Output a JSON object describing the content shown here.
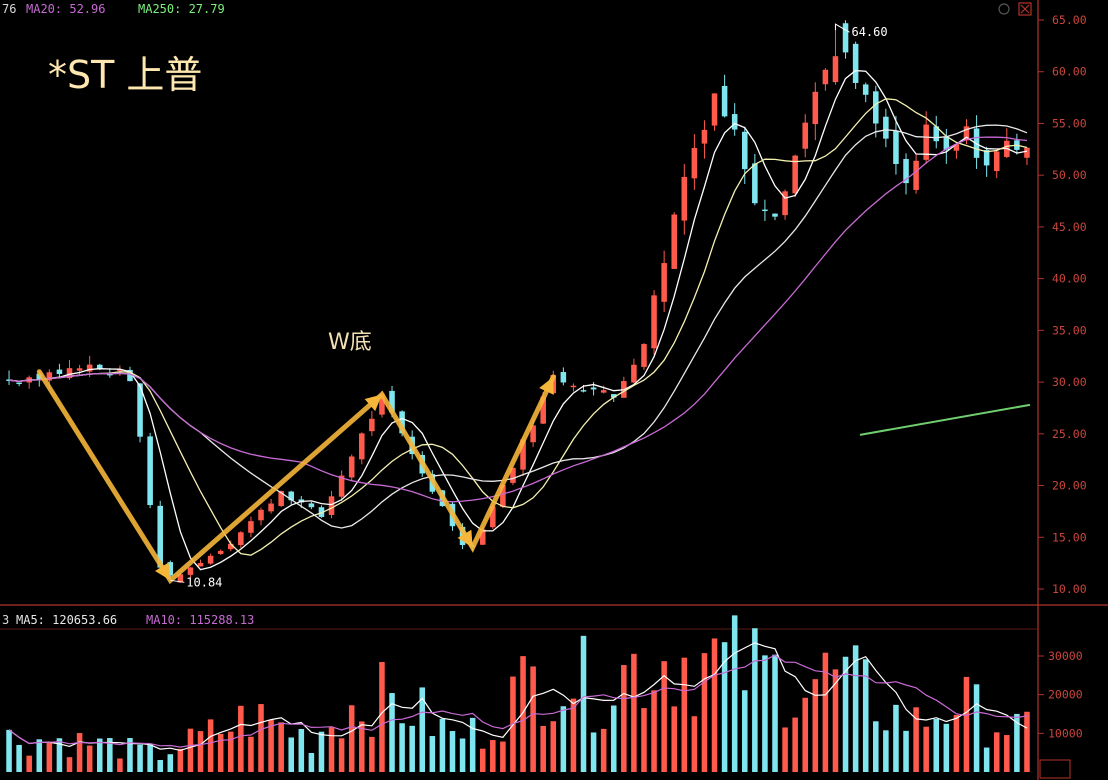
{
  "colors": {
    "background": "#000000",
    "axis_border": "#b3332c",
    "axis_text": "#c8463c",
    "up": "#ff5a4c",
    "down": "#7fe6ef",
    "ma_fast": "#ffffff",
    "ma_mid": "#f4f1b0",
    "ma_slow": "#c86ad4",
    "arrow": "#f5b63a",
    "trend": "#6fcf6f",
    "title_color": "#ffe7b0"
  },
  "header_top": {
    "partial": "76",
    "ma20_label": "MA20: 52.96",
    "ma250_label": "MA250: 27.79"
  },
  "header_bottom": {
    "partial": "3",
    "ma5_label": "MA5: 120653.66",
    "ma10_label": "MA10: 115288.13"
  },
  "chart_data": [
    {
      "type": "candlestick",
      "title": "*ST 上普",
      "pattern_label": "W底",
      "annotations": {
        "low_label": "10.84",
        "high_label": "64.60"
      },
      "y_ticks": [
        "65.00",
        "60.00",
        "55.00",
        "50.00",
        "45.00",
        "40.00",
        "35.00",
        "30.00",
        "25.00",
        "20.00",
        "15.00",
        "10.00"
      ],
      "ylim": [
        8.5,
        67.0
      ],
      "price_path": [
        [
          0,
          30.2
        ],
        [
          8,
          31.5
        ],
        [
          12,
          30.5
        ],
        [
          15,
          12.0
        ],
        [
          16,
          10.84
        ],
        [
          22,
          14.5
        ],
        [
          27,
          19.5
        ],
        [
          31,
          17.0
        ],
        [
          34,
          23
        ],
        [
          37,
          28.5
        ],
        [
          40,
          23
        ],
        [
          45,
          14.5
        ],
        [
          46,
          14.0
        ],
        [
          50,
          22
        ],
        [
          54,
          30.5
        ],
        [
          56,
          30.0
        ],
        [
          60,
          28.5
        ],
        [
          63,
          34
        ],
        [
          65,
          42
        ],
        [
          67,
          50
        ],
        [
          70,
          58
        ],
        [
          72,
          54
        ],
        [
          74,
          48
        ],
        [
          76,
          46.5
        ],
        [
          78,
          52
        ],
        [
          80,
          58
        ],
        [
          82,
          64.0
        ],
        [
          83,
          61
        ],
        [
          85,
          57
        ],
        [
          87,
          53
        ],
        [
          89,
          49
        ],
        [
          91,
          54
        ],
        [
          93,
          52
        ],
        [
          95,
          54
        ],
        [
          97,
          51
        ],
        [
          99,
          53
        ],
        [
          101,
          53
        ]
      ],
      "candle_count": 102,
      "ma_lines": [
        "MA5",
        "MA10",
        "MA20",
        "MA250"
      ],
      "trendline_values": [
        24.9,
        27.8
      ],
      "grid": false
    },
    {
      "type": "bar",
      "title": "",
      "y_ticks": [
        "30000",
        "20000",
        "10000"
      ],
      "ylim": [
        0,
        33000
      ],
      "volume_path": [
        [
          0,
          9000
        ],
        [
          5,
          8500
        ],
        [
          10,
          7000
        ],
        [
          15,
          4500
        ],
        [
          16,
          6000
        ],
        [
          20,
          10000
        ],
        [
          24,
          14500
        ],
        [
          27,
          12000
        ],
        [
          30,
          9000
        ],
        [
          33,
          16000
        ],
        [
          36,
          20000
        ],
        [
          40,
          17000
        ],
        [
          44,
          9500
        ],
        [
          47,
          11000
        ],
        [
          50,
          20000
        ],
        [
          52,
          24000
        ],
        [
          54,
          28000
        ],
        [
          56,
          25000
        ],
        [
          58,
          22000
        ],
        [
          62,
          28000
        ],
        [
          66,
          31000
        ],
        [
          70,
          29000
        ],
        [
          74,
          27000
        ],
        [
          78,
          24000
        ],
        [
          82,
          25000
        ],
        [
          85,
          21000
        ],
        [
          88,
          15000
        ],
        [
          90,
          13000
        ],
        [
          94,
          19000
        ],
        [
          97,
          14000
        ],
        [
          101,
          10500
        ]
      ],
      "ma_lines": [
        "MA5",
        "MA10"
      ],
      "grid": false
    }
  ]
}
